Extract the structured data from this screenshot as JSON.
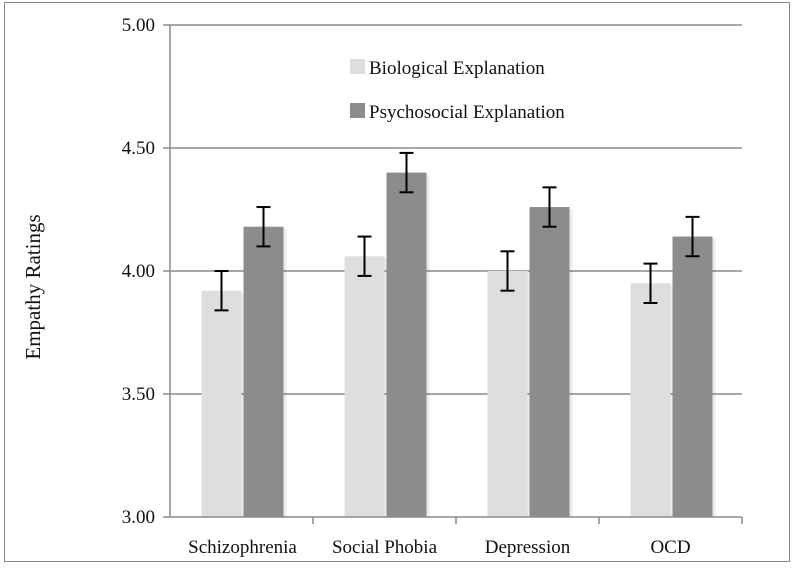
{
  "chart_data": {
    "type": "bar",
    "title": "",
    "xlabel": "",
    "ylabel": "Empathy Ratings",
    "ylim": [
      3.0,
      5.0
    ],
    "yticks": [
      "3.00",
      "3.50",
      "4.00",
      "4.50",
      "5.00"
    ],
    "ytick_values": [
      3.0,
      3.5,
      4.0,
      4.5,
      5.0
    ],
    "grid": true,
    "legend_position": "top-center",
    "categories": [
      "Schizophrenia",
      "Social Phobia",
      "Depression",
      "OCD"
    ],
    "series": [
      {
        "name": "Biological Explanation",
        "color": "#dedede",
        "values": [
          3.92,
          4.06,
          4.0,
          3.95
        ],
        "error": [
          0.08,
          0.08,
          0.08,
          0.08
        ]
      },
      {
        "name": "Psychosocial Explanation",
        "color": "#8c8c8c",
        "values": [
          4.18,
          4.4,
          4.26,
          4.14
        ],
        "error": [
          0.08,
          0.08,
          0.08,
          0.08
        ]
      }
    ]
  }
}
